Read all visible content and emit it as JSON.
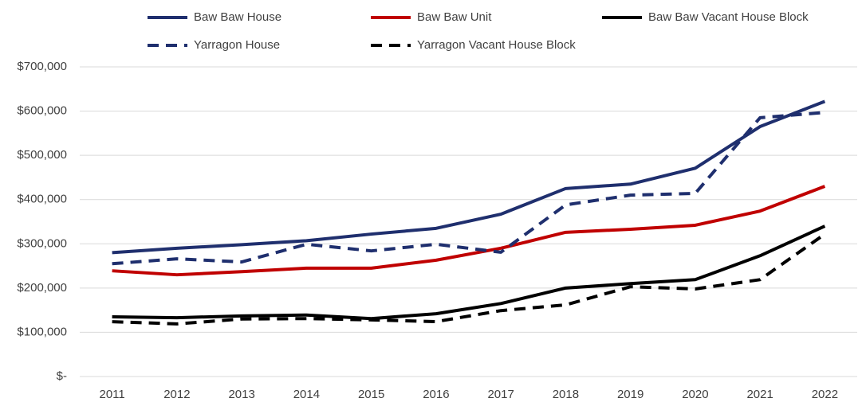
{
  "chart_data": {
    "type": "line",
    "categories": [
      "2011",
      "2012",
      "2013",
      "2014",
      "2015",
      "2016",
      "2017",
      "2018",
      "2019",
      "2020",
      "2021",
      "2022"
    ],
    "series": [
      {
        "name": "Baw Baw House",
        "color": "#1f2f6e",
        "dashed": false,
        "values": [
          280000,
          290000,
          298000,
          307000,
          322000,
          335000,
          367000,
          425000,
          435000,
          471000,
          565000,
          622000
        ]
      },
      {
        "name": "Baw Baw Unit",
        "color": "#c00000",
        "dashed": false,
        "values": [
          239000,
          230000,
          237000,
          245000,
          245000,
          263000,
          290000,
          326000,
          333000,
          342000,
          374000,
          430000
        ]
      },
      {
        "name": "Baw Baw Vacant House Block",
        "color": "#000000",
        "dashed": false,
        "values": [
          135000,
          133000,
          137000,
          139000,
          131000,
          142000,
          165000,
          200000,
          210000,
          219000,
          273000,
          340000
        ]
      },
      {
        "name": "Yarragon House",
        "color": "#1f2f6e",
        "dashed": true,
        "values": [
          255000,
          266000,
          259000,
          299000,
          284000,
          299000,
          281000,
          388000,
          410000,
          414000,
          585000,
          597000
        ]
      },
      {
        "name": "Yarragon Vacant House Block",
        "color": "#000000",
        "dashed": true,
        "values": [
          124000,
          119000,
          130000,
          131000,
          128000,
          124000,
          149000,
          162000,
          203000,
          198000,
          219000,
          322000
        ]
      }
    ],
    "ylim": [
      0,
      700000
    ],
    "yticks": [
      {
        "value": 0,
        "label": "$-"
      },
      {
        "value": 100000,
        "label": "$100,000"
      },
      {
        "value": 200000,
        "label": "$200,000"
      },
      {
        "value": 300000,
        "label": "$300,000"
      },
      {
        "value": 400000,
        "label": "$400,000"
      },
      {
        "value": 500000,
        "label": "$500,000"
      },
      {
        "value": 600000,
        "label": "$600,000"
      },
      {
        "value": 700000,
        "label": "$700,000"
      }
    ],
    "grid": true,
    "legend": "top"
  }
}
